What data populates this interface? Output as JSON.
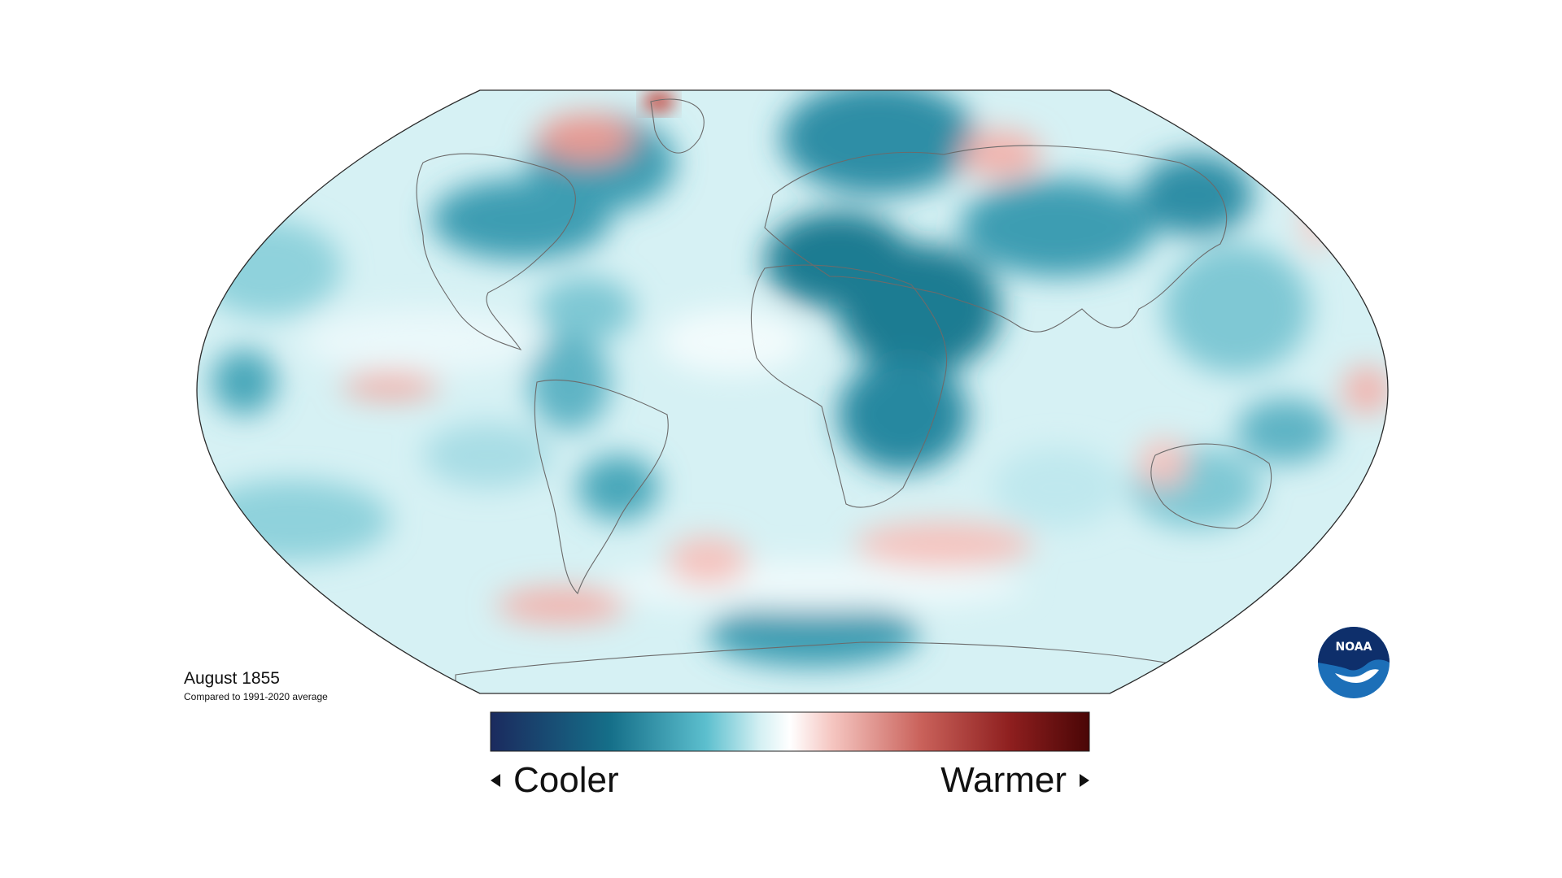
{
  "map": {
    "caption_title": "August 1855",
    "caption_subtitle": "Compared to 1991-2020 average",
    "legend": {
      "cooler_label": "Cooler",
      "warmer_label": "Warmer",
      "gradient_colors": [
        "#1b2a5e",
        "#156f89",
        "#5cbfce",
        "#d4f0f3",
        "#ffffff",
        "#f5c6c1",
        "#c9615a",
        "#8d1e1e",
        "#4a0606"
      ]
    },
    "colors": {
      "ocean_base": "#cdeef2",
      "cool_strong": "#1f7b92",
      "cool_mid": "#5bb8c8",
      "warm": "#f2b3ad",
      "warm_strong": "#d46a63",
      "coastline": "#6b6b6b",
      "frame": "#2a2a2a"
    },
    "logo": {
      "text": "NOAA",
      "icon": "noaa-logo-icon"
    }
  }
}
